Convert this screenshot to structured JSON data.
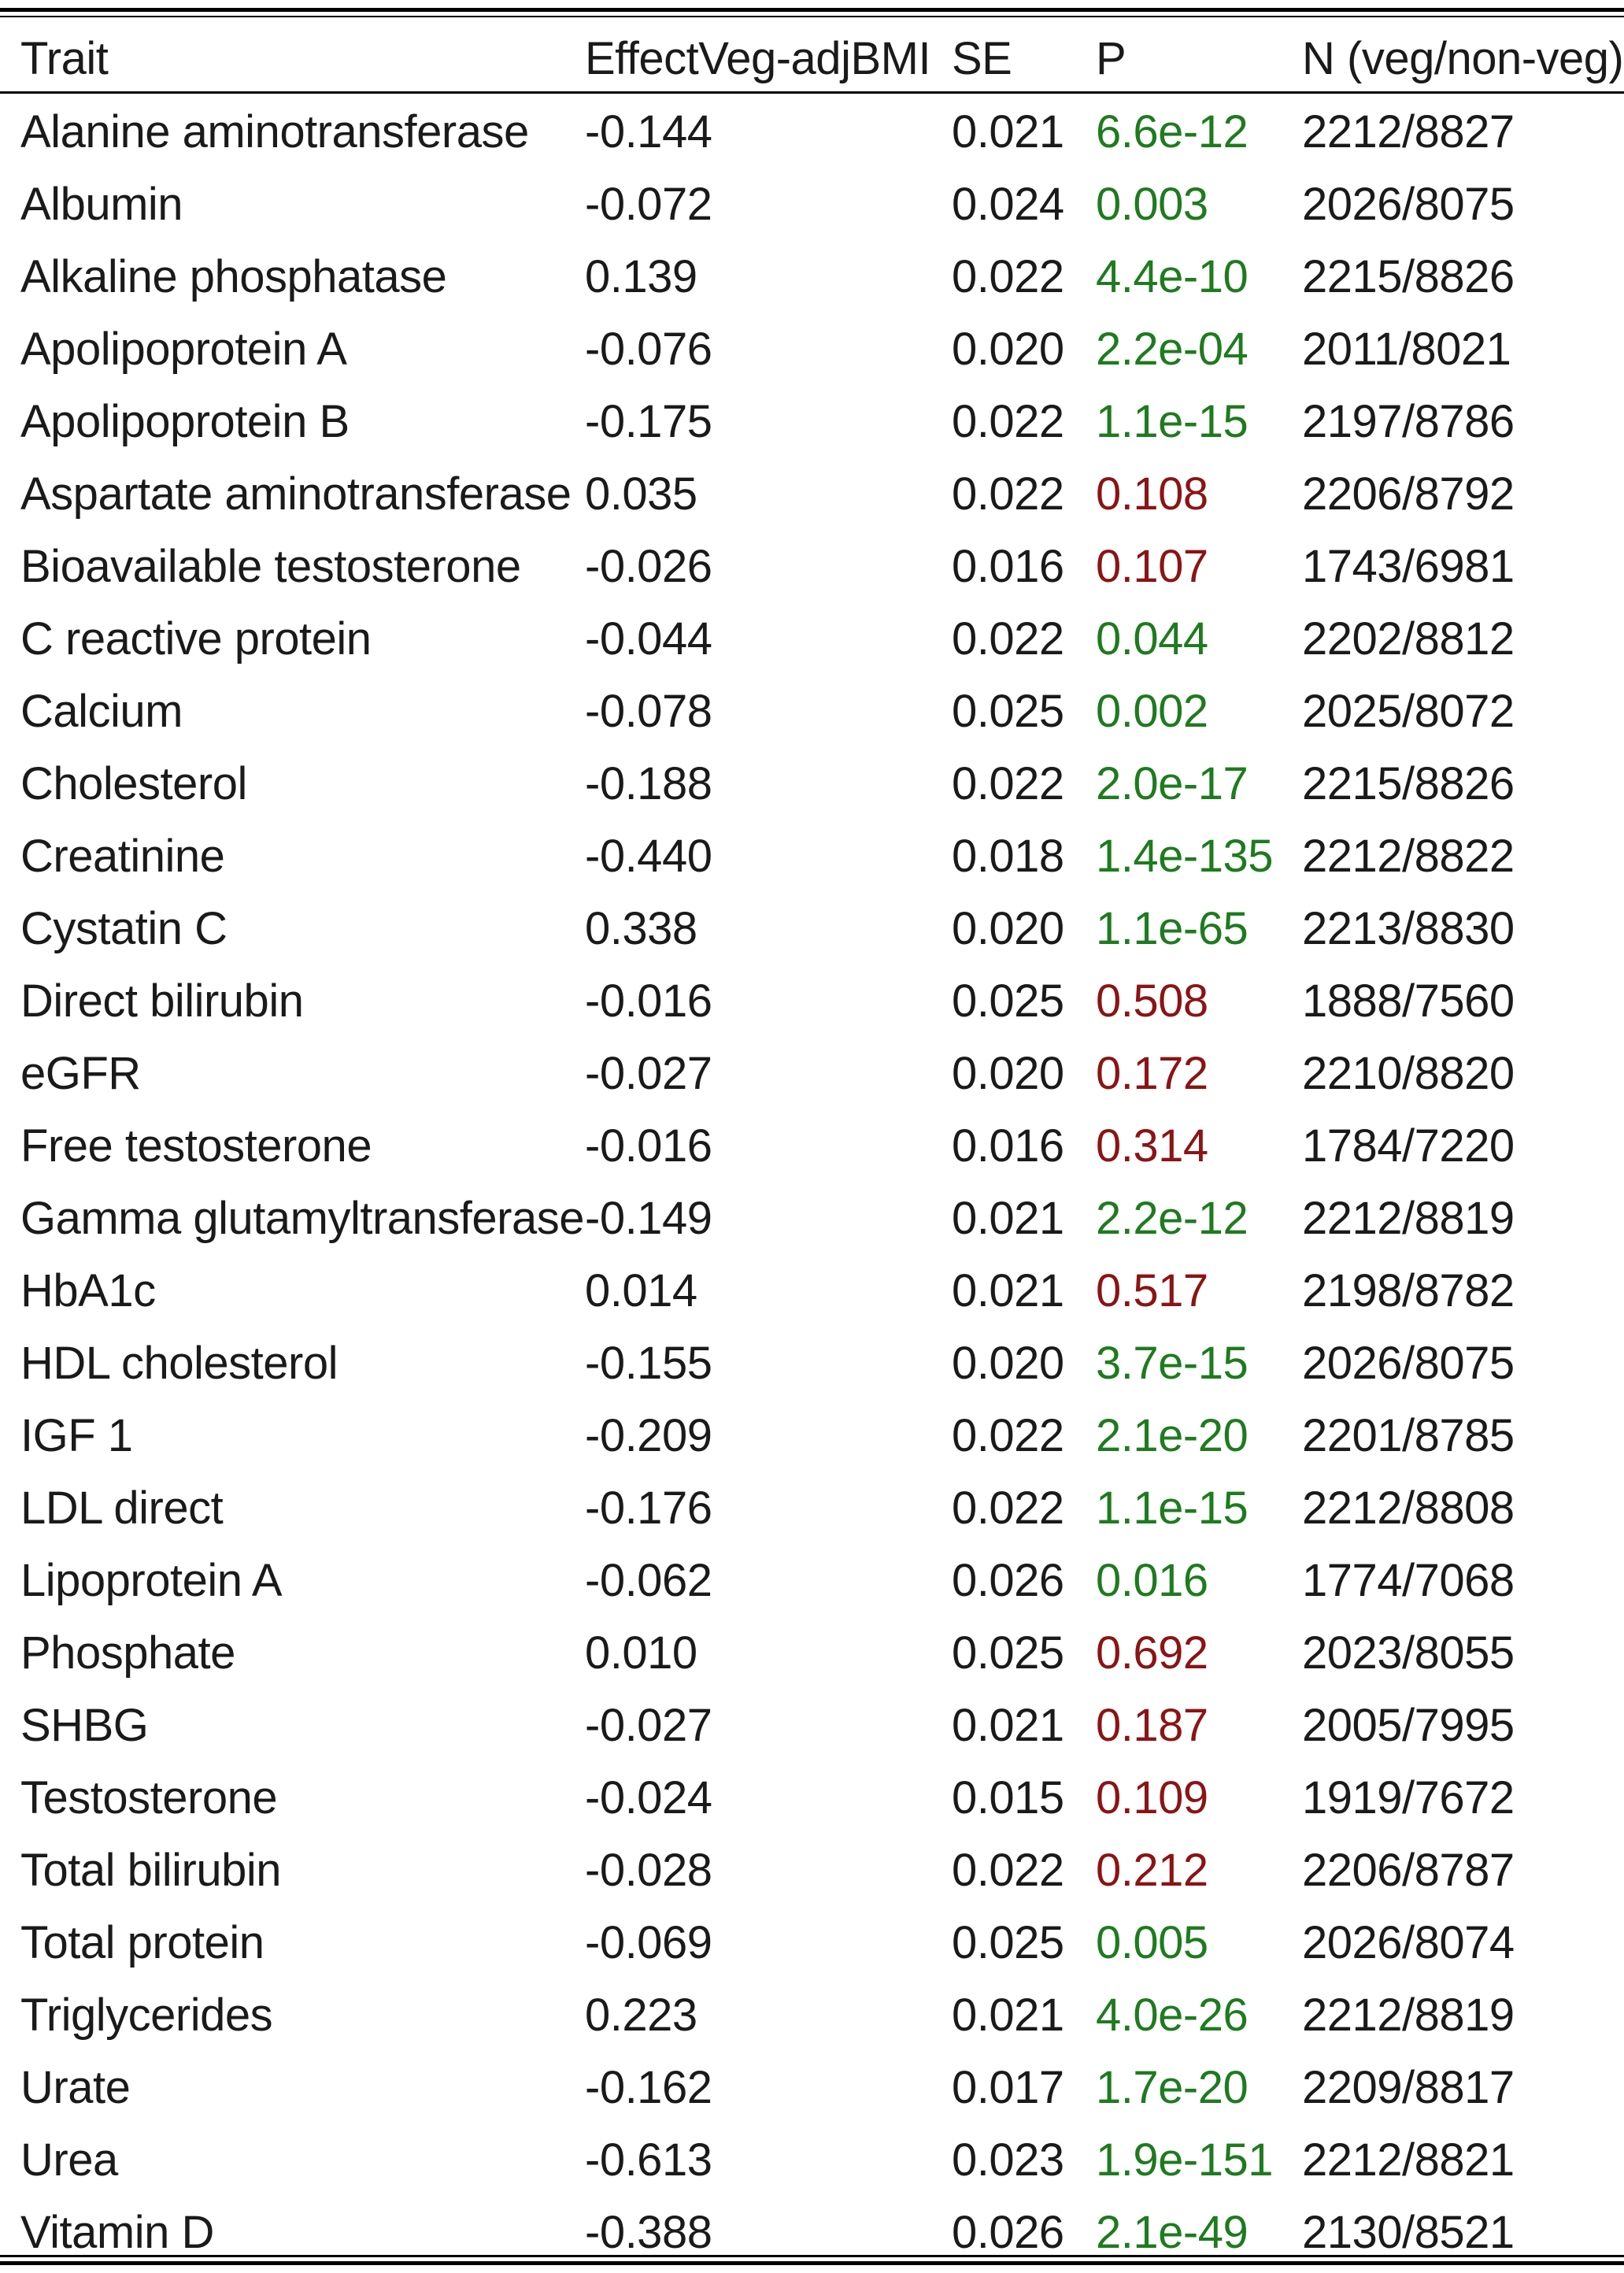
{
  "table": {
    "headers": {
      "trait": "Trait",
      "effect": "EffectVeg-adjBMI",
      "se": "SE",
      "p": "P",
      "n": "N (veg/non-veg)"
    },
    "colors": {
      "significant_p": "#1e7b1e",
      "nonsignificant_p": "#8b1414"
    },
    "rows": [
      {
        "trait": "Alanine aminotransferase",
        "effect": "-0.144",
        "se": "0.021",
        "p": "6.6e-12",
        "n": "2212/8827",
        "significant": true
      },
      {
        "trait": "Albumin",
        "effect": "-0.072",
        "se": "0.024",
        "p": "0.003",
        "n": "2026/8075",
        "significant": true
      },
      {
        "trait": "Alkaline phosphatase",
        "effect": "0.139",
        "se": "0.022",
        "p": "4.4e-10",
        "n": "2215/8826",
        "significant": true
      },
      {
        "trait": "Apolipoprotein A",
        "effect": "-0.076",
        "se": "0.020",
        "p": "2.2e-04",
        "n": "2011/8021",
        "significant": true
      },
      {
        "trait": "Apolipoprotein B",
        "effect": "-0.175",
        "se": "0.022",
        "p": "1.1e-15",
        "n": "2197/8786",
        "significant": true
      },
      {
        "trait": "Aspartate aminotransferase",
        "effect": "0.035",
        "se": "0.022",
        "p": "0.108",
        "n": "2206/8792",
        "significant": false
      },
      {
        "trait": "Bioavailable testosterone",
        "effect": "-0.026",
        "se": "0.016",
        "p": "0.107",
        "n": "1743/6981",
        "significant": false
      },
      {
        "trait": "C reactive protein",
        "effect": "-0.044",
        "se": "0.022",
        "p": "0.044",
        "n": "2202/8812",
        "significant": true
      },
      {
        "trait": "Calcium",
        "effect": "-0.078",
        "se": "0.025",
        "p": "0.002",
        "n": "2025/8072",
        "significant": true
      },
      {
        "trait": "Cholesterol",
        "effect": "-0.188",
        "se": "0.022",
        "p": "2.0e-17",
        "n": "2215/8826",
        "significant": true
      },
      {
        "trait": "Creatinine",
        "effect": "-0.440",
        "se": "0.018",
        "p": "1.4e-135",
        "n": "2212/8822",
        "significant": true
      },
      {
        "trait": "Cystatin C",
        "effect": "0.338",
        "se": "0.020",
        "p": "1.1e-65",
        "n": "2213/8830",
        "significant": true
      },
      {
        "trait": "Direct bilirubin",
        "effect": "-0.016",
        "se": "0.025",
        "p": "0.508",
        "n": "1888/7560",
        "significant": false
      },
      {
        "trait": "eGFR",
        "effect": "-0.027",
        "se": "0.020",
        "p": "0.172",
        "n": "2210/8820",
        "significant": false
      },
      {
        "trait": "Free testosterone",
        "effect": "-0.016",
        "se": "0.016",
        "p": "0.314",
        "n": "1784/7220",
        "significant": false
      },
      {
        "trait": "Gamma glutamyltransferase",
        "effect": "-0.149",
        "se": "0.021",
        "p": "2.2e-12",
        "n": "2212/8819",
        "significant": true
      },
      {
        "trait": "HbA1c",
        "effect": "0.014",
        "se": "0.021",
        "p": "0.517",
        "n": "2198/8782",
        "significant": false
      },
      {
        "trait": "HDL cholesterol",
        "effect": "-0.155",
        "se": "0.020",
        "p": "3.7e-15",
        "n": "2026/8075",
        "significant": true
      },
      {
        "trait": "IGF 1",
        "effect": "-0.209",
        "se": "0.022",
        "p": "2.1e-20",
        "n": "2201/8785",
        "significant": true
      },
      {
        "trait": "LDL direct",
        "effect": "-0.176",
        "se": "0.022",
        "p": "1.1e-15",
        "n": "2212/8808",
        "significant": true
      },
      {
        "trait": "Lipoprotein A",
        "effect": "-0.062",
        "se": "0.026",
        "p": "0.016",
        "n": "1774/7068",
        "significant": true
      },
      {
        "trait": "Phosphate",
        "effect": "0.010",
        "se": "0.025",
        "p": "0.692",
        "n": "2023/8055",
        "significant": false
      },
      {
        "trait": "SHBG",
        "effect": "-0.027",
        "se": "0.021",
        "p": "0.187",
        "n": "2005/7995",
        "significant": false
      },
      {
        "trait": "Testosterone",
        "effect": "-0.024",
        "se": "0.015",
        "p": "0.109",
        "n": "1919/7672",
        "significant": false
      },
      {
        "trait": "Total bilirubin",
        "effect": "-0.028",
        "se": "0.022",
        "p": "0.212",
        "n": "2206/8787",
        "significant": false
      },
      {
        "trait": "Total protein",
        "effect": "-0.069",
        "se": "0.025",
        "p": "0.005",
        "n": "2026/8074",
        "significant": true
      },
      {
        "trait": "Triglycerides",
        "effect": "0.223",
        "se": "0.021",
        "p": "4.0e-26",
        "n": "2212/8819",
        "significant": true
      },
      {
        "trait": "Urate",
        "effect": "-0.162",
        "se": "0.017",
        "p": "1.7e-20",
        "n": "2209/8817",
        "significant": true
      },
      {
        "trait": "Urea",
        "effect": "-0.613",
        "se": "0.023",
        "p": "1.9e-151",
        "n": "2212/8821",
        "significant": true
      },
      {
        "trait": "Vitamin D",
        "effect": "-0.388",
        "se": "0.026",
        "p": "2.1e-49",
        "n": "2130/8521",
        "significant": true
      }
    ]
  }
}
